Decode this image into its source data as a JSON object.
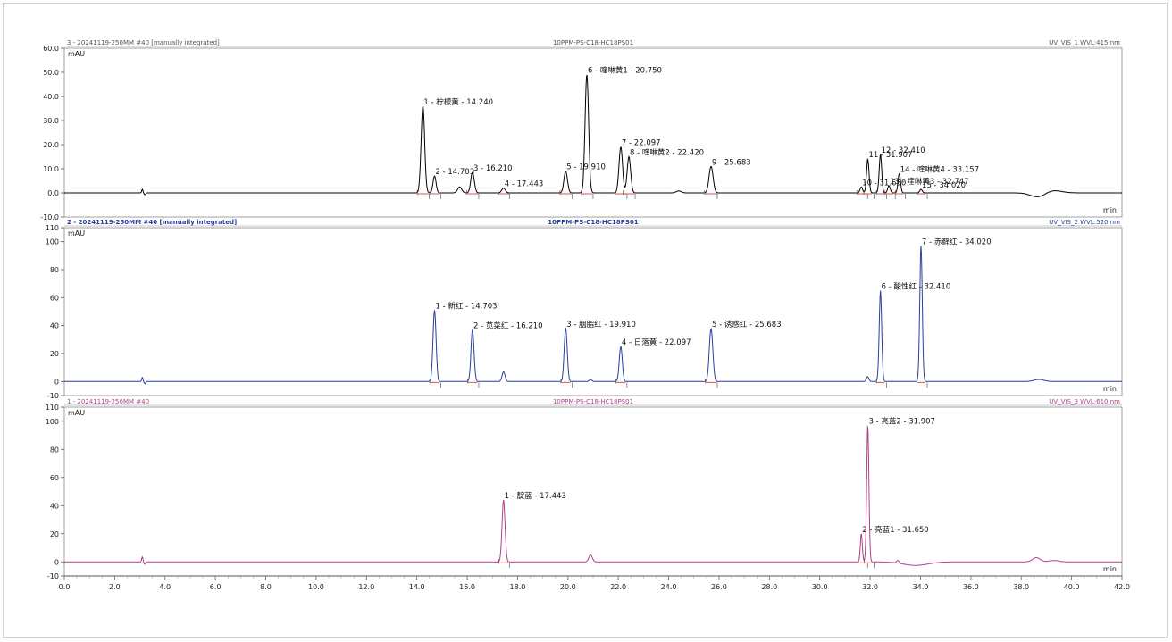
{
  "chart_data": [
    {
      "type": "line",
      "title": "3 - 20241119-250MM #40 [manually integrated]",
      "subtitle": "10PPM-PS-C18-HC18PS01",
      "detector": "UV_VIS_1 WVL:415 nm",
      "ylabel": "mAU",
      "xlabel": "min",
      "color": "#000000",
      "baseline_color": "#d04040",
      "xlim": [
        0,
        42
      ],
      "ylim": [
        -10,
        60
      ],
      "yticks": [
        "-10.0",
        "0.0",
        "10.0",
        "20.0",
        "30.0",
        "40.0",
        "50.0",
        "60.0"
      ],
      "peaks": [
        {
          "rt": 14.24,
          "height": 36,
          "width": 0.07,
          "label": "1 - 柠檬黄 - 14.240"
        },
        {
          "rt": 14.703,
          "height": 7,
          "width": 0.06,
          "label": "2 - 14.703"
        },
        {
          "rt": 15.7,
          "height": 2.5,
          "width": 0.08,
          "label": ""
        },
        {
          "rt": 16.21,
          "height": 8.5,
          "width": 0.07,
          "label": "3 - 16.210"
        },
        {
          "rt": 17.443,
          "height": 2,
          "width": 0.07,
          "label": "4 - 17.443"
        },
        {
          "rt": 19.91,
          "height": 9,
          "width": 0.07,
          "label": "5 - 19.910"
        },
        {
          "rt": 20.75,
          "height": 49,
          "width": 0.07,
          "label": "6 - 喹啉黄1 - 20.750"
        },
        {
          "rt": 22.097,
          "height": 19,
          "width": 0.07,
          "label": "7 - 22.097"
        },
        {
          "rt": 22.42,
          "height": 15,
          "width": 0.07,
          "label": "8 - 喹啉黄2 - 22.420"
        },
        {
          "rt": 24.4,
          "height": 0.8,
          "width": 0.1,
          "label": ""
        },
        {
          "rt": 25.683,
          "height": 11,
          "width": 0.08,
          "label": "9 - 25.683"
        },
        {
          "rt": 31.65,
          "height": 2.5,
          "width": 0.05,
          "label": "10 - 31.650"
        },
        {
          "rt": 31.907,
          "height": 14,
          "width": 0.05,
          "label": "11 - 31.907"
        },
        {
          "rt": 32.41,
          "height": 16,
          "width": 0.05,
          "label": "12 - 32.410"
        },
        {
          "rt": 32.747,
          "height": 3,
          "width": 0.05,
          "label": "13 - 喹啉黄3 - 32.747"
        },
        {
          "rt": 33.157,
          "height": 8,
          "width": 0.05,
          "label": "14 - 喹啉黄4 - 33.157"
        },
        {
          "rt": 34.02,
          "height": 1.5,
          "width": 0.05,
          "label": "15 - 34.020"
        },
        {
          "rt": 39.2,
          "height": 1.2,
          "width": 0.35,
          "label": ""
        }
      ],
      "dips": [
        {
          "rt": 38.7,
          "depth": 2.0,
          "width": 0.3
        }
      ],
      "spikes": [
        {
          "rt": 3.1,
          "height": 1.5
        }
      ]
    },
    {
      "type": "line",
      "title": "2 - 20241119-250MM #40 [manually integrated]",
      "subtitle": "10PPM-PS-C18-HC18PS01",
      "detector": "UV_VIS_2 WVL:520 nm",
      "ylabel": "mAU",
      "xlabel": "min",
      "color": "#2a3f9a",
      "baseline_color": "#d04040",
      "xlim": [
        0,
        42
      ],
      "ylim": [
        -10,
        110
      ],
      "yticks": [
        "-10",
        "0",
        "20",
        "40",
        "60",
        "80",
        "100",
        "110"
      ],
      "peaks": [
        {
          "rt": 14.703,
          "height": 51,
          "width": 0.06,
          "label": "1 - 新红 - 14.703"
        },
        {
          "rt": 16.21,
          "height": 37,
          "width": 0.06,
          "label": "2 - 苋菜红 - 16.210"
        },
        {
          "rt": 17.443,
          "height": 7,
          "width": 0.06,
          "label": ""
        },
        {
          "rt": 19.91,
          "height": 38,
          "width": 0.06,
          "label": "3 - 胭脂红 - 19.910"
        },
        {
          "rt": 20.9,
          "height": 1.5,
          "width": 0.05,
          "label": ""
        },
        {
          "rt": 22.097,
          "height": 25,
          "width": 0.06,
          "label": "4 - 日落黄 - 22.097"
        },
        {
          "rt": 25.683,
          "height": 38,
          "width": 0.07,
          "label": "5 - 诱惑红 - 25.683"
        },
        {
          "rt": 31.9,
          "height": 3.5,
          "width": 0.05,
          "label": ""
        },
        {
          "rt": 32.41,
          "height": 65,
          "width": 0.05,
          "label": "6 - 酸性红 - 32.410"
        },
        {
          "rt": 34.02,
          "height": 97,
          "width": 0.05,
          "label": "7 - 赤藓红 - 34.020"
        },
        {
          "rt": 38.7,
          "height": 1.5,
          "width": 0.2,
          "label": ""
        }
      ],
      "dips": [],
      "spikes": [
        {
          "rt": 3.1,
          "height": 3
        }
      ]
    },
    {
      "type": "line",
      "title": "1 - 20241119-250MM #40",
      "subtitle": "10PPM-PS-C18-HC18PS01",
      "detector": "UV_VIS_3 WVL:610 nm",
      "ylabel": "mAU",
      "xlabel": "min",
      "color": "#b0408a",
      "baseline_color": "#d04040",
      "xlim": [
        0,
        42
      ],
      "ylim": [
        -10,
        110
      ],
      "yticks": [
        "-10",
        "0",
        "20",
        "40",
        "60",
        "80",
        "100",
        "110"
      ],
      "xticks": [
        "0.0",
        "2.0",
        "4.0",
        "6.0",
        "8.0",
        "10.0",
        "12.0",
        "14.0",
        "16.0",
        "18.0",
        "20.0",
        "22.0",
        "24.0",
        "26.0",
        "28.0",
        "30.0",
        "32.0",
        "34.0",
        "36.0",
        "38.0",
        "40.0",
        "42.0"
      ],
      "peaks": [
        {
          "rt": 17.443,
          "height": 44,
          "width": 0.06,
          "label": "1 - 靛蓝 - 17.443"
        },
        {
          "rt": 20.9,
          "height": 5,
          "width": 0.07,
          "label": ""
        },
        {
          "rt": 31.65,
          "height": 20,
          "width": 0.04,
          "label": "2 - 亮蓝1 - 31.650"
        },
        {
          "rt": 31.907,
          "height": 97,
          "width": 0.045,
          "label": "3 - 亮蓝2 - 31.907"
        },
        {
          "rt": 33.1,
          "height": 2,
          "width": 0.05,
          "label": ""
        },
        {
          "rt": 38.6,
          "height": 3,
          "width": 0.15,
          "label": ""
        },
        {
          "rt": 39.3,
          "height": 1,
          "width": 0.2,
          "label": ""
        }
      ],
      "dips": [
        {
          "rt": 33.8,
          "depth": 2.5,
          "width": 0.5
        }
      ],
      "spikes": [
        {
          "rt": 3.1,
          "height": 3.5
        }
      ]
    }
  ]
}
